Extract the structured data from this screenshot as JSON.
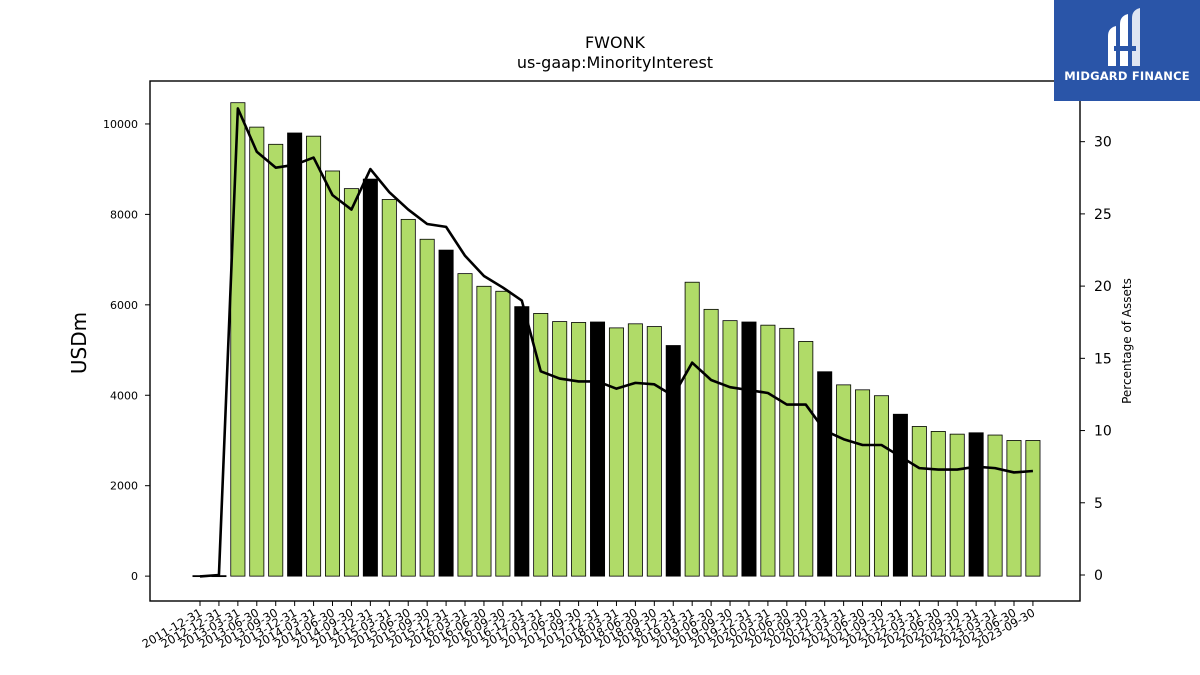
{
  "chart_data": {
    "type": "bar",
    "title": "FWONK",
    "subtitle": "us-gaap:MinorityInterest",
    "ylabel": "USDm",
    "y2label": "Percentage of Assets",
    "ylim": [
      -550,
      10950
    ],
    "y2lim": [
      -1.8,
      34.2
    ],
    "yticks": [
      0,
      2000,
      4000,
      6000,
      8000,
      10000
    ],
    "y2ticks": [
      0,
      5,
      10,
      15,
      20,
      25,
      30
    ],
    "categories": [
      "2011-12-31",
      "2012-12-31",
      "2013-03-31",
      "2013-06-30",
      "2013-09-30",
      "2013-12-31",
      "2014-03-31",
      "2014-06-30",
      "2014-09-30",
      "2014-12-31",
      "2015-03-31",
      "2015-06-30",
      "2015-09-30",
      "2015-12-31",
      "2016-03-31",
      "2016-06-30",
      "2016-09-30",
      "2016-12-31",
      "2017-03-31",
      "2017-06-30",
      "2017-09-30",
      "2017-12-31",
      "2018-03-31",
      "2018-06-30",
      "2018-09-30",
      "2018-12-31",
      "2019-03-31",
      "2019-06-30",
      "2019-09-30",
      "2019-12-31",
      "2020-03-31",
      "2020-06-30",
      "2020-09-30",
      "2020-12-31",
      "2021-03-31",
      "2021-06-30",
      "2021-09-30",
      "2021-12-31",
      "2022-03-31",
      "2022-06-30",
      "2022-09-30",
      "2022-12-31",
      "2023-03-31",
      "2023-06-30",
      "2023-09-30"
    ],
    "series": [
      {
        "type": "bar",
        "values": [
          0,
          0,
          10470,
          9930,
          9550,
          9800,
          9730,
          8960,
          8570,
          8780,
          8330,
          7890,
          7450,
          7210,
          6690,
          6410,
          6300,
          5960,
          5810,
          5630,
          5610,
          5620,
          5490,
          5580,
          5520,
          5100,
          6500,
          5900,
          5650,
          5620,
          5550,
          5480,
          5190,
          4520,
          4230,
          4120,
          3990,
          3580,
          3310,
          3200,
          3140,
          3170,
          3120,
          3000,
          3000
        ],
        "annual": [
          true,
          true,
          false,
          false,
          false,
          true,
          false,
          false,
          false,
          true,
          false,
          false,
          false,
          true,
          false,
          false,
          false,
          true,
          false,
          false,
          false,
          true,
          false,
          false,
          false,
          true,
          false,
          false,
          false,
          true,
          false,
          false,
          false,
          true,
          false,
          false,
          false,
          true,
          false,
          false,
          false,
          true,
          false,
          false,
          false
        ],
        "color": "#b0db68",
        "annual_color": "#000000"
      },
      {
        "type": "line",
        "values": [
          -0.1,
          0,
          32.3,
          29.3,
          28.2,
          28.4,
          28.9,
          26.3,
          25.3,
          28.1,
          26.5,
          25.3,
          24.3,
          24.1,
          22.1,
          20.7,
          19.9,
          19.0,
          14.1,
          13.6,
          13.4,
          13.4,
          12.9,
          13.3,
          13.2,
          12.4,
          14.7,
          13.5,
          13.0,
          12.8,
          12.6,
          11.8,
          11.8,
          10.0,
          9.4,
          9.0,
          9.0,
          8.2,
          7.4,
          7.3,
          7.3,
          7.5,
          7.4,
          7.1,
          7.2
        ],
        "color": "#000000"
      }
    ]
  },
  "logo": {
    "text": "MIDGARD FINANCE",
    "color": "#2a55a8"
  }
}
